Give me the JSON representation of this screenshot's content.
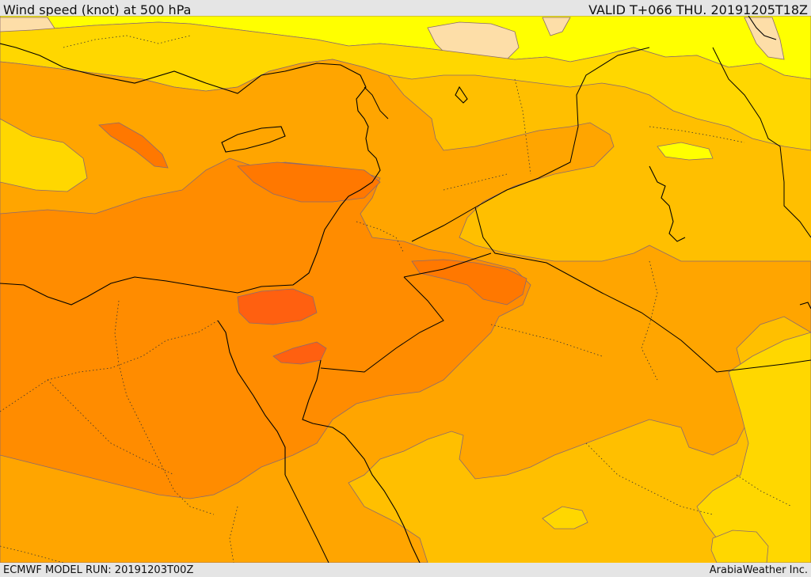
{
  "header": {
    "title": "Wind speed (knot) at 500 hPa",
    "valid_time": "VALID T+066 THU. 20191205T18Z"
  },
  "footer": {
    "model_run": "ECMWF MODEL RUN: 20191203T00Z",
    "provider": "ArabiaWeather Inc."
  },
  "map": {
    "field": "wind-speed",
    "palette": {
      "level_1": "#fddea8",
      "level_2": "#ffff00",
      "level_3": "#ffd700",
      "level_4": "#ffbf00",
      "level_5": "#ffa500",
      "level_6": "#ff8c00",
      "level_7": "#ff7800",
      "level_8": "#ff6010",
      "contour_line": "#8a6a70",
      "coastline": "#000000",
      "border_dotted": "#333333"
    }
  }
}
